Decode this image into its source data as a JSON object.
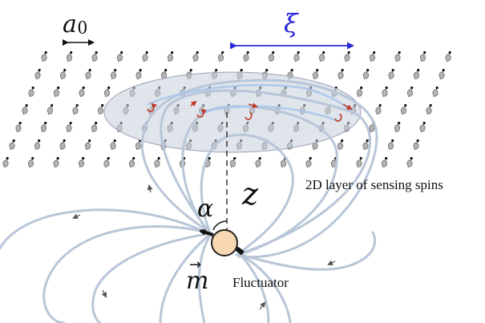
{
  "labels": {
    "lattice_spacing_main": "a",
    "lattice_spacing_sub": "0",
    "correlation_length": "ξ",
    "height": "z",
    "angle": "α",
    "moment_vector": "m",
    "moment_arrow": "→",
    "fluctuator": "Fluctuator",
    "layer": "2D layer of sensing spins"
  },
  "colors": {
    "background": "#ffffff",
    "spin_body": "#b3b3b3",
    "spin_tip": "#111111",
    "layer_region": "#c7cedb",
    "field_line": "#b8c6d8",
    "field_line_highlight": "#a9c7ec",
    "precession_arrow": "#c0392b",
    "xi_arrow": "#2b2bd6",
    "fluctuator_body": "#f7d8b2",
    "text": "#111111"
  }
}
